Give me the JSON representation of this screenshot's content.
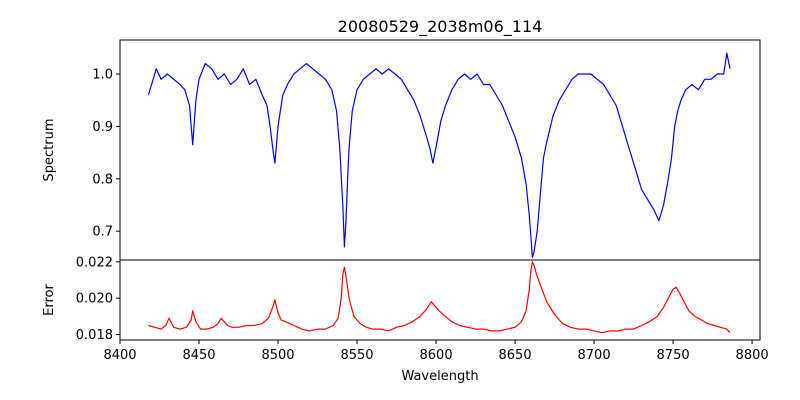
{
  "chart_data": [
    {
      "type": "line",
      "title": "20080529_2038m06_114",
      "ylabel": "Spectrum",
      "xlim": [
        8400,
        8805
      ],
      "ylim": [
        0.645,
        1.065
      ],
      "yticks": [
        0.7,
        0.8,
        0.9,
        1.0
      ],
      "yticklabels": [
        "0.7",
        "0.8",
        "0.9",
        "1.0"
      ],
      "grid": false,
      "series": [
        {
          "color": "#0000ff",
          "x": [
            8418,
            8420,
            8423,
            8426,
            8430,
            8434,
            8438,
            8441,
            8444,
            8446,
            8448,
            8450,
            8454,
            8458,
            8462,
            8466,
            8470,
            8474,
            8478,
            8482,
            8486,
            8490,
            8493,
            8495,
            8497,
            8498,
            8500,
            8503,
            8506,
            8510,
            8514,
            8518,
            8522,
            8526,
            8530,
            8534,
            8537,
            8539,
            8541,
            8542,
            8543,
            8544,
            8545,
            8547,
            8550,
            8554,
            8558,
            8562,
            8566,
            8570,
            8574,
            8578,
            8582,
            8586,
            8590,
            8593,
            8596,
            8598,
            8600,
            8603,
            8606,
            8610,
            8614,
            8618,
            8622,
            8626,
            8630,
            8634,
            8638,
            8642,
            8646,
            8650,
            8654,
            8657,
            8659,
            8661,
            8662,
            8664,
            8666,
            8668,
            8670,
            8674,
            8678,
            8682,
            8686,
            8690,
            8694,
            8698,
            8702,
            8706,
            8710,
            8714,
            8718,
            8722,
            8726,
            8730,
            8734,
            8738,
            8741,
            8744,
            8747,
            8749,
            8750,
            8751,
            8753,
            8755,
            8758,
            8762,
            8766,
            8770,
            8774,
            8778,
            8782,
            8784,
            8786
          ],
          "y": [
            0.96,
            0.98,
            1.01,
            0.99,
            1.0,
            0.99,
            0.98,
            0.97,
            0.94,
            0.865,
            0.95,
            0.99,
            1.02,
            1.01,
            0.99,
            1.0,
            0.98,
            0.99,
            1.01,
            0.98,
            0.99,
            0.96,
            0.94,
            0.9,
            0.85,
            0.83,
            0.9,
            0.96,
            0.98,
            1.0,
            1.01,
            1.02,
            1.01,
            1.0,
            0.99,
            0.97,
            0.93,
            0.86,
            0.75,
            0.67,
            0.72,
            0.8,
            0.86,
            0.93,
            0.97,
            0.99,
            1.0,
            1.01,
            1.0,
            1.01,
            1.0,
            0.99,
            0.97,
            0.95,
            0.92,
            0.89,
            0.86,
            0.83,
            0.86,
            0.91,
            0.94,
            0.97,
            0.99,
            1.0,
            0.99,
            1.0,
            0.98,
            0.98,
            0.96,
            0.94,
            0.91,
            0.88,
            0.84,
            0.79,
            0.73,
            0.65,
            0.66,
            0.7,
            0.77,
            0.84,
            0.87,
            0.92,
            0.95,
            0.97,
            0.99,
            1.0,
            1.0,
            1.0,
            0.99,
            0.98,
            0.96,
            0.94,
            0.9,
            0.86,
            0.82,
            0.78,
            0.76,
            0.74,
            0.72,
            0.75,
            0.8,
            0.84,
            0.87,
            0.9,
            0.93,
            0.95,
            0.97,
            0.98,
            0.97,
            0.99,
            0.99,
            1.0,
            1.0,
            1.04,
            1.01
          ]
        }
      ]
    },
    {
      "type": "line",
      "xlabel": "Wavelength",
      "ylabel": "Error",
      "xlim": [
        8400,
        8805
      ],
      "ylim": [
        0.0177,
        0.0221
      ],
      "xticks": [
        8400,
        8450,
        8500,
        8550,
        8600,
        8650,
        8700,
        8750,
        8800
      ],
      "xticklabels": [
        "8400",
        "8450",
        "8500",
        "8550",
        "8600",
        "8650",
        "8700",
        "8750",
        "8800"
      ],
      "yticks": [
        0.018,
        0.02,
        0.022
      ],
      "yticklabels": [
        "0.018",
        "0.020",
        "0.022"
      ],
      "grid": false,
      "series": [
        {
          "color": "#ff0000",
          "x": [
            8418,
            8422,
            8426,
            8429,
            8431,
            8434,
            8438,
            8442,
            8445,
            8446,
            8448,
            8451,
            8455,
            8459,
            8462,
            8464,
            8466,
            8468,
            8471,
            8475,
            8480,
            8485,
            8490,
            8494,
            8497,
            8498,
            8500,
            8502,
            8505,
            8510,
            8515,
            8520,
            8525,
            8530,
            8535,
            8538,
            8540,
            8541,
            8542,
            8543,
            8545,
            8548,
            8552,
            8556,
            8560,
            8565,
            8570,
            8575,
            8580,
            8585,
            8590,
            8594,
            8597,
            8599,
            8602,
            8606,
            8610,
            8615,
            8620,
            8625,
            8630,
            8635,
            8640,
            8645,
            8650,
            8654,
            8657,
            8659,
            8660,
            8661,
            8662,
            8664,
            8667,
            8670,
            8675,
            8680,
            8685,
            8690,
            8695,
            8700,
            8705,
            8710,
            8715,
            8720,
            8725,
            8730,
            8735,
            8740,
            8744,
            8747,
            8750,
            8752,
            8754,
            8757,
            8760,
            8764,
            8768,
            8772,
            8776,
            8780,
            8784,
            8786
          ],
          "y": [
            0.0185,
            0.0184,
            0.0183,
            0.0185,
            0.0189,
            0.0184,
            0.0183,
            0.0184,
            0.0188,
            0.0193,
            0.0187,
            0.0183,
            0.0183,
            0.0184,
            0.0186,
            0.0189,
            0.0187,
            0.0185,
            0.0184,
            0.0184,
            0.0185,
            0.0185,
            0.0186,
            0.0189,
            0.0196,
            0.0199,
            0.0192,
            0.0188,
            0.0187,
            0.0185,
            0.0183,
            0.0182,
            0.0183,
            0.0183,
            0.0185,
            0.0189,
            0.02,
            0.0213,
            0.0217,
            0.0212,
            0.02,
            0.019,
            0.0186,
            0.0184,
            0.0183,
            0.0183,
            0.0182,
            0.0184,
            0.0185,
            0.0187,
            0.019,
            0.0194,
            0.0198,
            0.0196,
            0.0193,
            0.019,
            0.0187,
            0.0185,
            0.0184,
            0.0183,
            0.0183,
            0.0182,
            0.0182,
            0.0183,
            0.0184,
            0.0187,
            0.0193,
            0.0205,
            0.0215,
            0.022,
            0.0218,
            0.0212,
            0.0205,
            0.0198,
            0.0191,
            0.0186,
            0.0184,
            0.0183,
            0.0183,
            0.0182,
            0.0181,
            0.0182,
            0.0182,
            0.0183,
            0.0183,
            0.0185,
            0.0187,
            0.019,
            0.0195,
            0.02,
            0.0205,
            0.0206,
            0.0203,
            0.0198,
            0.0193,
            0.019,
            0.0188,
            0.0186,
            0.0185,
            0.0184,
            0.0183,
            0.0181
          ]
        }
      ]
    }
  ]
}
